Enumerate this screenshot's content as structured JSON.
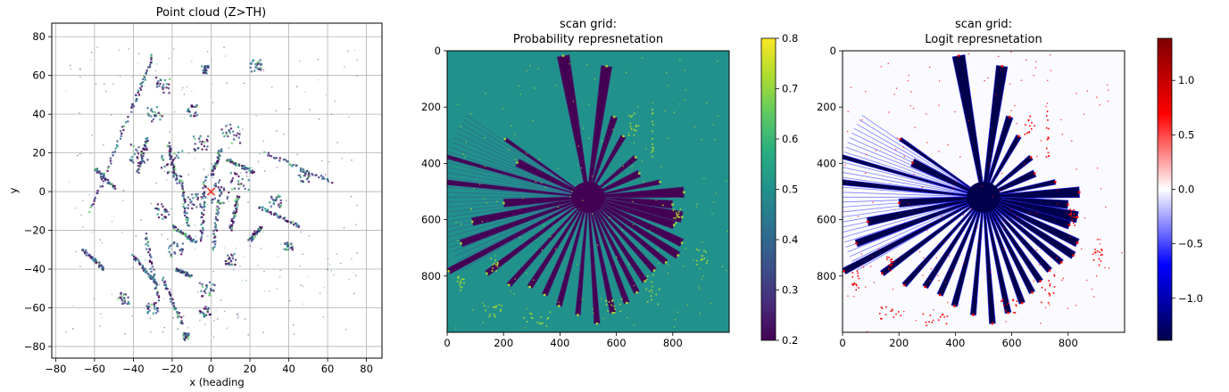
{
  "chart_data": [
    {
      "type": "scatter",
      "title": "Point cloud (Z>TH)",
      "xlabel": "x (heading",
      "ylabel": "y",
      "xlim": [
        -82,
        88
      ],
      "ylim": [
        -86,
        87
      ],
      "xticks": [
        -80,
        -60,
        -40,
        -20,
        0,
        20,
        40,
        60,
        80
      ],
      "yticks": [
        -80,
        -60,
        -40,
        -20,
        0,
        20,
        40,
        60,
        80
      ],
      "grid": true,
      "marker": {
        "x": 0,
        "y": 0,
        "color": "#e8403a"
      },
      "segments": [
        [
          -30,
          70,
          -41,
          42
        ],
        [
          -43,
          38,
          -62,
          -10
        ],
        [
          -33,
          28,
          -38,
          10
        ],
        [
          -18,
          5,
          -22,
          25
        ],
        [
          -12,
          -18,
          -16,
          8
        ],
        [
          -5,
          -25,
          -3,
          8
        ],
        [
          1,
          -30,
          5,
          2
        ],
        [
          10,
          -20,
          14,
          -2
        ],
        [
          -34,
          -22,
          -27,
          -56
        ],
        [
          -40,
          -33,
          -28,
          -48
        ],
        [
          -20,
          -18,
          -8,
          -26
        ],
        [
          20,
          -25,
          26,
          -18
        ],
        [
          28,
          20,
          62,
          5
        ],
        [
          25,
          -8,
          45,
          -18
        ],
        [
          5,
          22,
          0,
          8
        ],
        [
          -18,
          -40,
          -10,
          -44
        ],
        [
          -25,
          -45,
          -15,
          -68
        ],
        [
          -55,
          -40,
          -66,
          -30
        ],
        [
          8,
          17,
          22,
          10
        ],
        [
          -60,
          12,
          -50,
          2
        ]
      ],
      "clusters": [
        [
          -25,
          55,
          4
        ],
        [
          -29,
          40,
          4
        ],
        [
          -20,
          15,
          6
        ],
        [
          -10,
          42,
          3
        ],
        [
          -5,
          25,
          4
        ],
        [
          10,
          30,
          5
        ],
        [
          5,
          0,
          6
        ],
        [
          -8,
          -5,
          4
        ],
        [
          -2,
          -50,
          4
        ],
        [
          -3,
          -62,
          3
        ],
        [
          -30,
          -60,
          3
        ],
        [
          -45,
          -55,
          3
        ],
        [
          -37,
          20,
          5
        ],
        [
          33,
          -5,
          3
        ],
        [
          48,
          8,
          3
        ],
        [
          -3,
          63,
          2
        ],
        [
          23,
          65,
          3
        ],
        [
          10,
          -35,
          3
        ],
        [
          -18,
          -30,
          4
        ],
        [
          -25,
          -10,
          4
        ],
        [
          15,
          5,
          5
        ],
        [
          -13,
          -75,
          2
        ],
        [
          40,
          -28,
          2
        ]
      ]
    },
    {
      "type": "heatmap",
      "title": "scan grid:\nProbability represnetation",
      "xlim": [
        0,
        1000
      ],
      "ylim": [
        1000,
        0
      ],
      "xticks": [
        0,
        200,
        400,
        600,
        800
      ],
      "yticks": [
        0,
        200,
        400,
        600,
        800
      ],
      "center": [
        500,
        520
      ],
      "background_value": 0.5,
      "occupied_value": 0.8,
      "free_value": 0.2,
      "colorbar": {
        "min": 0.2,
        "max": 0.8,
        "ticks": [
          0.2,
          0.3,
          0.4,
          0.5,
          0.6,
          0.7,
          0.8
        ],
        "colormap": "viridis"
      }
    },
    {
      "type": "heatmap",
      "title": "scan grid:\nLogit represnetation",
      "xlim": [
        0,
        1000
      ],
      "ylim": [
        1000,
        0
      ],
      "xticks": [
        0,
        200,
        400,
        600,
        800
      ],
      "yticks": [
        0,
        200,
        400,
        600,
        800
      ],
      "center": [
        500,
        520
      ],
      "colorbar": {
        "min": -1.386,
        "max": 1.386,
        "ticks": [
          -1.0,
          -0.5,
          0.0,
          0.5,
          1.0
        ],
        "colormap": "seismic"
      }
    }
  ],
  "scan_rays": [
    {
      "angle": -100,
      "length": 510,
      "width": 45
    },
    {
      "angle": -82,
      "length": 470,
      "width": 40
    },
    {
      "angle": -72,
      "length": 300,
      "width": 25
    },
    {
      "angle": -60,
      "length": 250,
      "width": 20
    },
    {
      "angle": -40,
      "length": 220,
      "width": 20
    },
    {
      "angle": -25,
      "length": 200,
      "width": 26
    },
    {
      "angle": -12,
      "length": 260,
      "width": 18
    },
    {
      "angle": -3,
      "length": 340,
      "width": 38
    },
    {
      "angle": 5,
      "length": 300,
      "width": 30
    },
    {
      "angle": 12,
      "length": 340,
      "width": 40
    },
    {
      "angle": 18,
      "length": 320,
      "width": 30
    },
    {
      "angle": 26,
      "length": 370,
      "width": 30
    },
    {
      "angle": 33,
      "length": 380,
      "width": 28
    },
    {
      "angle": 40,
      "length": 360,
      "width": 22
    },
    {
      "angle": 48,
      "length": 350,
      "width": 22
    },
    {
      "angle": 56,
      "length": 360,
      "width": 22
    },
    {
      "angle": 63,
      "length": 380,
      "width": 22
    },
    {
      "angle": 70,
      "length": 400,
      "width": 22
    },
    {
      "angle": 78,
      "length": 420,
      "width": 22
    },
    {
      "angle": 86,
      "length": 450,
      "width": 22
    },
    {
      "angle": 95,
      "length": 420,
      "width": 20
    },
    {
      "angle": 105,
      "length": 400,
      "width": 22
    },
    {
      "angle": 114,
      "length": 380,
      "width": 22
    },
    {
      "angle": 123,
      "length": 380,
      "width": 22
    },
    {
      "angle": 132,
      "length": 420,
      "width": 20
    },
    {
      "angle": 143,
      "length": 450,
      "width": 22
    },
    {
      "angle": 152,
      "length": 560,
      "width": 24
    },
    {
      "angle": 160,
      "length": 480,
      "width": 26
    },
    {
      "angle": 168,
      "length": 420,
      "width": 30
    },
    {
      "angle": 176,
      "length": 300,
      "width": 30
    },
    {
      "angle": 186,
      "length": 520,
      "width": 20
    },
    {
      "angle": 196,
      "length": 560,
      "width": 16
    },
    {
      "angle": 206,
      "length": 280,
      "width": 30
    },
    {
      "angle": 215,
      "length": 360,
      "width": 14
    }
  ],
  "occupied_features": [
    [
      640,
      220,
      680,
      300
    ],
    [
      720,
      200,
      730,
      380
    ],
    [
      270,
      920,
      370,
      980
    ],
    [
      120,
      900,
      210,
      950
    ],
    [
      700,
      780,
      750,
      900
    ],
    [
      800,
      560,
      830,
      620
    ],
    [
      30,
      780,
      60,
      850
    ],
    [
      880,
      700,
      920,
      760
    ],
    [
      150,
      730,
      180,
      780
    ],
    [
      560,
      880,
      620,
      930
    ]
  ],
  "colors": {
    "viridis": [
      "#440154",
      "#472d7b",
      "#3b528b",
      "#2c728e",
      "#21918c",
      "#28ae80",
      "#5ec962",
      "#addc30",
      "#fde725"
    ],
    "seismic": [
      "#00004c",
      "#0000ff",
      "#ffffff",
      "#ff0000",
      "#7f0000"
    ],
    "prob_background": "#21918c",
    "prob_free": "#440154",
    "prob_ray_edge": "#3b528b",
    "prob_occupied": "#addc30",
    "logit_background": "#fbfbff",
    "logit_free": "#00004c",
    "logit_ray_edge": "#2a2aff",
    "logit_occupied": "#ff0000",
    "marker": "#e8403a"
  }
}
